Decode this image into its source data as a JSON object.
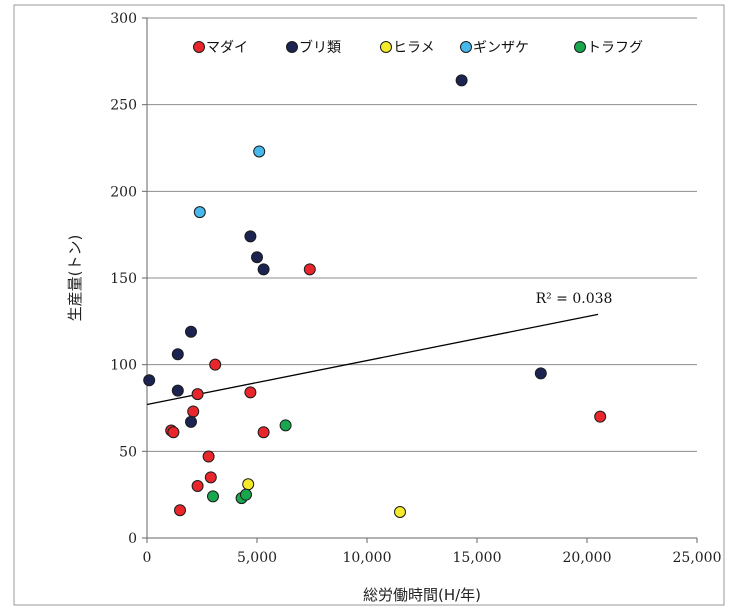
{
  "chart_data": {
    "type": "scatter",
    "title": "",
    "xlabel": "総労働時間(H/年)",
    "ylabel": "生産量(トン)",
    "xlim": [
      0,
      25000
    ],
    "ylim": [
      0,
      300
    ],
    "xticks": [
      0,
      5000,
      10000,
      15000,
      20000,
      25000
    ],
    "xtick_labels": [
      "0",
      "5,000",
      "10,000",
      "15,000",
      "20,000",
      "25,000"
    ],
    "yticks": [
      0,
      50,
      100,
      150,
      200,
      250,
      300
    ],
    "ytick_labels": [
      "0",
      "50",
      "100",
      "150",
      "200",
      "250",
      "300"
    ],
    "grid": "horizontal",
    "legend_position": "top",
    "series": [
      {
        "name": "マダイ",
        "color": "#e8262b",
        "points": [
          [
            1100,
            62
          ],
          [
            1200,
            61
          ],
          [
            1500,
            16
          ],
          [
            2100,
            73
          ],
          [
            2300,
            83
          ],
          [
            2300,
            30
          ],
          [
            2800,
            47
          ],
          [
            2900,
            35
          ],
          [
            3100,
            100
          ],
          [
            4700,
            84
          ],
          [
            5300,
            61
          ],
          [
            7400,
            155
          ],
          [
            20600,
            70
          ]
        ]
      },
      {
        "name": "ブリ類",
        "color": "#1b2350",
        "points": [
          [
            100,
            91
          ],
          [
            1400,
            85
          ],
          [
            1400,
            106
          ],
          [
            2000,
            119
          ],
          [
            2000,
            67
          ],
          [
            4700,
            174
          ],
          [
            5000,
            162
          ],
          [
            5300,
            155
          ],
          [
            14300,
            264
          ],
          [
            17900,
            95
          ]
        ]
      },
      {
        "name": "ヒラメ",
        "color": "#f5e92b",
        "points": [
          [
            4600,
            31
          ],
          [
            11500,
            15
          ]
        ]
      },
      {
        "name": "ギンザケ",
        "color": "#47b8ec",
        "points": [
          [
            2400,
            188
          ],
          [
            5100,
            223
          ]
        ]
      },
      {
        "name": "トラフグ",
        "color": "#17a84f",
        "points": [
          [
            3000,
            24
          ],
          [
            4300,
            23
          ],
          [
            4500,
            25
          ],
          [
            6300,
            65
          ]
        ]
      }
    ],
    "trendline": {
      "type": "linear",
      "from": [
        0,
        77
      ],
      "to": [
        20500,
        129
      ],
      "label": "R² = 0.038",
      "color": "#000000"
    }
  }
}
